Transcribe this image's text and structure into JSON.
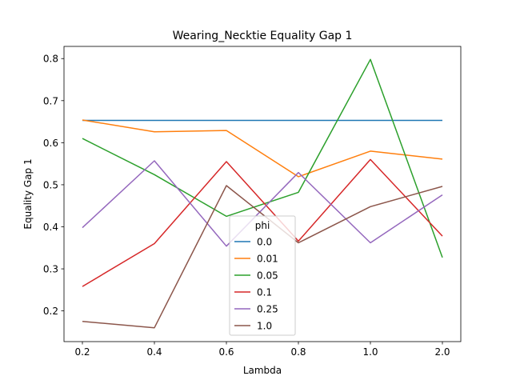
{
  "chart_data": {
    "type": "line",
    "title": "Wearing_Necktie Equality Gap 1",
    "xlabel": "Lambda",
    "ylabel": "Equality Gap 1",
    "categories": [
      "0.2",
      "0.4",
      "0.6",
      "0.8",
      "1.0",
      "2.0"
    ],
    "yticks": [
      "0.2",
      "0.3",
      "0.4",
      "0.5",
      "0.6",
      "0.7",
      "0.8"
    ],
    "ylim": [
      0.127,
      0.829
    ],
    "grid": false,
    "legend": {
      "title": "phi",
      "placement": "lower-center"
    },
    "series": [
      {
        "name": "0.0",
        "color": "#1f77b4",
        "values": [
          0.653,
          0.653,
          0.653,
          0.653,
          0.653,
          0.653
        ]
      },
      {
        "name": "0.01",
        "color": "#ff7f0e",
        "values": [
          0.654,
          0.626,
          0.629,
          0.519,
          0.58,
          0.561
        ]
      },
      {
        "name": "0.05",
        "color": "#2ca02c",
        "values": [
          0.61,
          0.524,
          0.425,
          0.482,
          0.798,
          0.327
        ]
      },
      {
        "name": "0.1",
        "color": "#d62728",
        "values": [
          0.258,
          0.36,
          0.555,
          0.366,
          0.56,
          0.378
        ]
      },
      {
        "name": "0.25",
        "color": "#9467bd",
        "values": [
          0.398,
          0.557,
          0.354,
          0.529,
          0.362,
          0.476
        ]
      },
      {
        "name": "1.0",
        "color": "#8c564b",
        "values": [
          0.175,
          0.16,
          0.498,
          0.362,
          0.448,
          0.496
        ]
      }
    ]
  }
}
